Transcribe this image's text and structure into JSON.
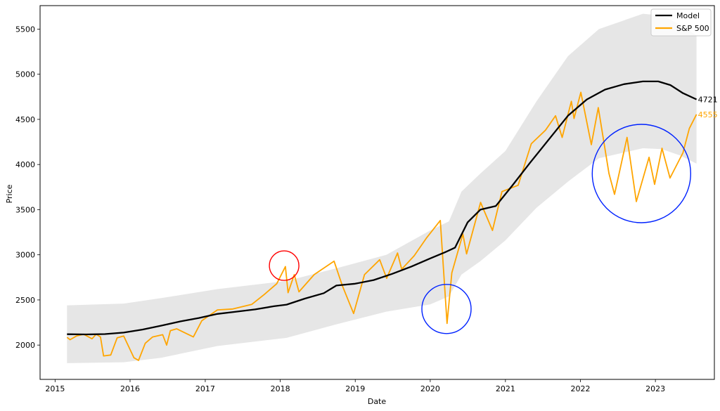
{
  "chart_data": {
    "type": "line",
    "xlabel": "Date",
    "ylabel": "Price",
    "xlim": [
      "2014-10-20",
      "2023-10-15"
    ],
    "ylim": [
      1620,
      5760
    ],
    "x_ticks": [
      "2015",
      "2016",
      "2017",
      "2018",
      "2019",
      "2020",
      "2021",
      "2022",
      "2023"
    ],
    "y_ticks": [
      2000,
      2500,
      3000,
      3500,
      4000,
      4500,
      5000,
      5500
    ],
    "grid": false,
    "legend": {
      "position": "top-right",
      "entries": [
        "Model",
        "S&P 500"
      ]
    },
    "colors": {
      "model": "#000000",
      "sp500": "#ffa500",
      "band": "#e6e6e6",
      "circle_red": "#ff0000",
      "circle_blue": "#0022ff"
    },
    "series": [
      {
        "name": "Model",
        "color": "#000000",
        "points": [
          [
            "2015-02-28",
            2120
          ],
          [
            "2015-06-01",
            2118
          ],
          [
            "2015-09-01",
            2122
          ],
          [
            "2015-12-01",
            2138
          ],
          [
            "2016-03-01",
            2172
          ],
          [
            "2016-06-01",
            2215
          ],
          [
            "2016-09-01",
            2262
          ],
          [
            "2016-12-01",
            2300
          ],
          [
            "2017-03-01",
            2345
          ],
          [
            "2017-06-01",
            2370
          ],
          [
            "2017-09-01",
            2395
          ],
          [
            "2017-12-01",
            2430
          ],
          [
            "2018-02-01",
            2448
          ],
          [
            "2018-05-01",
            2515
          ],
          [
            "2018-08-01",
            2575
          ],
          [
            "2018-10-01",
            2660
          ],
          [
            "2019-01-01",
            2680
          ],
          [
            "2019-04-01",
            2720
          ],
          [
            "2019-07-01",
            2790
          ],
          [
            "2019-10-01",
            2870
          ],
          [
            "2020-01-01",
            2960
          ],
          [
            "2020-03-15",
            3030
          ],
          [
            "2020-05-01",
            3080
          ],
          [
            "2020-07-01",
            3360
          ],
          [
            "2020-09-01",
            3500
          ],
          [
            "2020-11-15",
            3540
          ],
          [
            "2021-02-01",
            3760
          ],
          [
            "2021-05-01",
            4020
          ],
          [
            "2021-08-01",
            4280
          ],
          [
            "2021-11-01",
            4540
          ],
          [
            "2022-02-01",
            4720
          ],
          [
            "2022-05-01",
            4830
          ],
          [
            "2022-08-01",
            4890
          ],
          [
            "2022-11-01",
            4920
          ],
          [
            "2023-01-15",
            4920
          ],
          [
            "2023-03-15",
            4880
          ],
          [
            "2023-05-15",
            4790
          ],
          [
            "2023-07-20",
            4721
          ]
        ]
      },
      {
        "name": "S&P 500",
        "color": "#ffa500",
        "points": [
          [
            "2015-02-28",
            2085
          ],
          [
            "2015-03-15",
            2060
          ],
          [
            "2015-04-15",
            2100
          ],
          [
            "2015-05-20",
            2120
          ],
          [
            "2015-06-30",
            2070
          ],
          [
            "2015-07-20",
            2120
          ],
          [
            "2015-08-10",
            2090
          ],
          [
            "2015-08-25",
            1880
          ],
          [
            "2015-09-29",
            1890
          ],
          [
            "2015-10-30",
            2080
          ],
          [
            "2015-12-01",
            2100
          ],
          [
            "2016-01-20",
            1860
          ],
          [
            "2016-02-11",
            1830
          ],
          [
            "2016-03-15",
            2020
          ],
          [
            "2016-04-20",
            2090
          ],
          [
            "2016-06-08",
            2115
          ],
          [
            "2016-06-27",
            2000
          ],
          [
            "2016-07-15",
            2160
          ],
          [
            "2016-08-15",
            2180
          ],
          [
            "2016-11-04",
            2090
          ],
          [
            "2016-12-15",
            2270
          ],
          [
            "2017-03-01",
            2390
          ],
          [
            "2017-05-15",
            2400
          ],
          [
            "2017-08-15",
            2450
          ],
          [
            "2017-10-15",
            2560
          ],
          [
            "2017-12-15",
            2680
          ],
          [
            "2018-01-26",
            2870
          ],
          [
            "2018-02-08",
            2580
          ],
          [
            "2018-03-10",
            2780
          ],
          [
            "2018-04-02",
            2590
          ],
          [
            "2018-06-15",
            2780
          ],
          [
            "2018-09-20",
            2930
          ],
          [
            "2018-10-30",
            2660
          ],
          [
            "2018-12-24",
            2350
          ],
          [
            "2019-02-15",
            2780
          ],
          [
            "2019-04-30",
            2945
          ],
          [
            "2019-06-03",
            2740
          ],
          [
            "2019-07-26",
            3020
          ],
          [
            "2019-08-15",
            2840
          ],
          [
            "2019-10-15",
            2990
          ],
          [
            "2019-12-15",
            3190
          ],
          [
            "2020-02-19",
            3380
          ],
          [
            "2020-03-23",
            2240
          ],
          [
            "2020-04-15",
            2800
          ],
          [
            "2020-06-08",
            3230
          ],
          [
            "2020-06-26",
            3010
          ],
          [
            "2020-09-02",
            3580
          ],
          [
            "2020-10-30",
            3270
          ],
          [
            "2020-12-15",
            3700
          ],
          [
            "2021-03-04",
            3770
          ],
          [
            "2021-05-07",
            4230
          ],
          [
            "2021-07-15",
            4380
          ],
          [
            "2021-09-02",
            4540
          ],
          [
            "2021-10-04",
            4300
          ],
          [
            "2021-11-18",
            4700
          ],
          [
            "2021-12-01",
            4510
          ],
          [
            "2022-01-03",
            4800
          ],
          [
            "2022-02-23",
            4220
          ],
          [
            "2022-03-29",
            4630
          ],
          [
            "2022-05-20",
            3900
          ],
          [
            "2022-06-16",
            3670
          ],
          [
            "2022-08-16",
            4300
          ],
          [
            "2022-09-30",
            3590
          ],
          [
            "2022-12-01",
            4080
          ],
          [
            "2022-12-28",
            3780
          ],
          [
            "2023-02-02",
            4180
          ],
          [
            "2023-03-13",
            3850
          ],
          [
            "2023-05-15",
            4130
          ],
          [
            "2023-06-15",
            4400
          ],
          [
            "2023-07-20",
            4555
          ]
        ]
      }
    ],
    "confidence_band": {
      "upper": [
        [
          "2015-02-28",
          2440
        ],
        [
          "2015-12-01",
          2460
        ],
        [
          "2016-06-01",
          2520
        ],
        [
          "2017-03-01",
          2620
        ],
        [
          "2018-02-01",
          2710
        ],
        [
          "2018-10-01",
          2850
        ],
        [
          "2019-06-01",
          3000
        ],
        [
          "2020-01-01",
          3270
        ],
        [
          "2020-04-01",
          3370
        ],
        [
          "2020-06-01",
          3700
        ],
        [
          "2020-09-01",
          3900
        ],
        [
          "2021-01-01",
          4150
        ],
        [
          "2021-06-01",
          4700
        ],
        [
          "2021-11-01",
          5200
        ],
        [
          "2022-04-01",
          5500
        ],
        [
          "2022-11-01",
          5670
        ],
        [
          "2023-02-01",
          5650
        ],
        [
          "2023-05-01",
          5550
        ],
        [
          "2023-07-20",
          5430
        ]
      ],
      "lower": [
        [
          "2015-02-28",
          1800
        ],
        [
          "2015-12-01",
          1810
        ],
        [
          "2016-06-01",
          1860
        ],
        [
          "2017-03-01",
          1990
        ],
        [
          "2018-02-01",
          2080
        ],
        [
          "2018-10-01",
          2230
        ],
        [
          "2019-06-01",
          2370
        ],
        [
          "2020-01-01",
          2450
        ],
        [
          "2020-04-01",
          2540
        ],
        [
          "2020-06-01",
          2780
        ],
        [
          "2020-09-01",
          2930
        ],
        [
          "2021-01-01",
          3160
        ],
        [
          "2021-06-01",
          3520
        ],
        [
          "2021-11-01",
          3810
        ],
        [
          "2022-04-01",
          4070
        ],
        [
          "2022-11-01",
          4180
        ],
        [
          "2023-02-01",
          4170
        ],
        [
          "2023-05-01",
          4100
        ],
        [
          "2023-07-20",
          4010
        ]
      ]
    },
    "end_labels": [
      {
        "text": "4721",
        "value": 4721,
        "series": "Model"
      },
      {
        "text": "4555",
        "value": 4555,
        "series": "S&P 500"
      }
    ],
    "annotations": [
      {
        "shape": "circle",
        "color": "#ff0000",
        "center": [
          "2018-01-20",
          2880
        ]
      },
      {
        "shape": "circle",
        "color": "#0022ff",
        "center": [
          "2020-03-20",
          2400
        ]
      },
      {
        "shape": "circle",
        "color": "#0022ff",
        "center": [
          "2022-10-25",
          3900
        ]
      }
    ]
  }
}
